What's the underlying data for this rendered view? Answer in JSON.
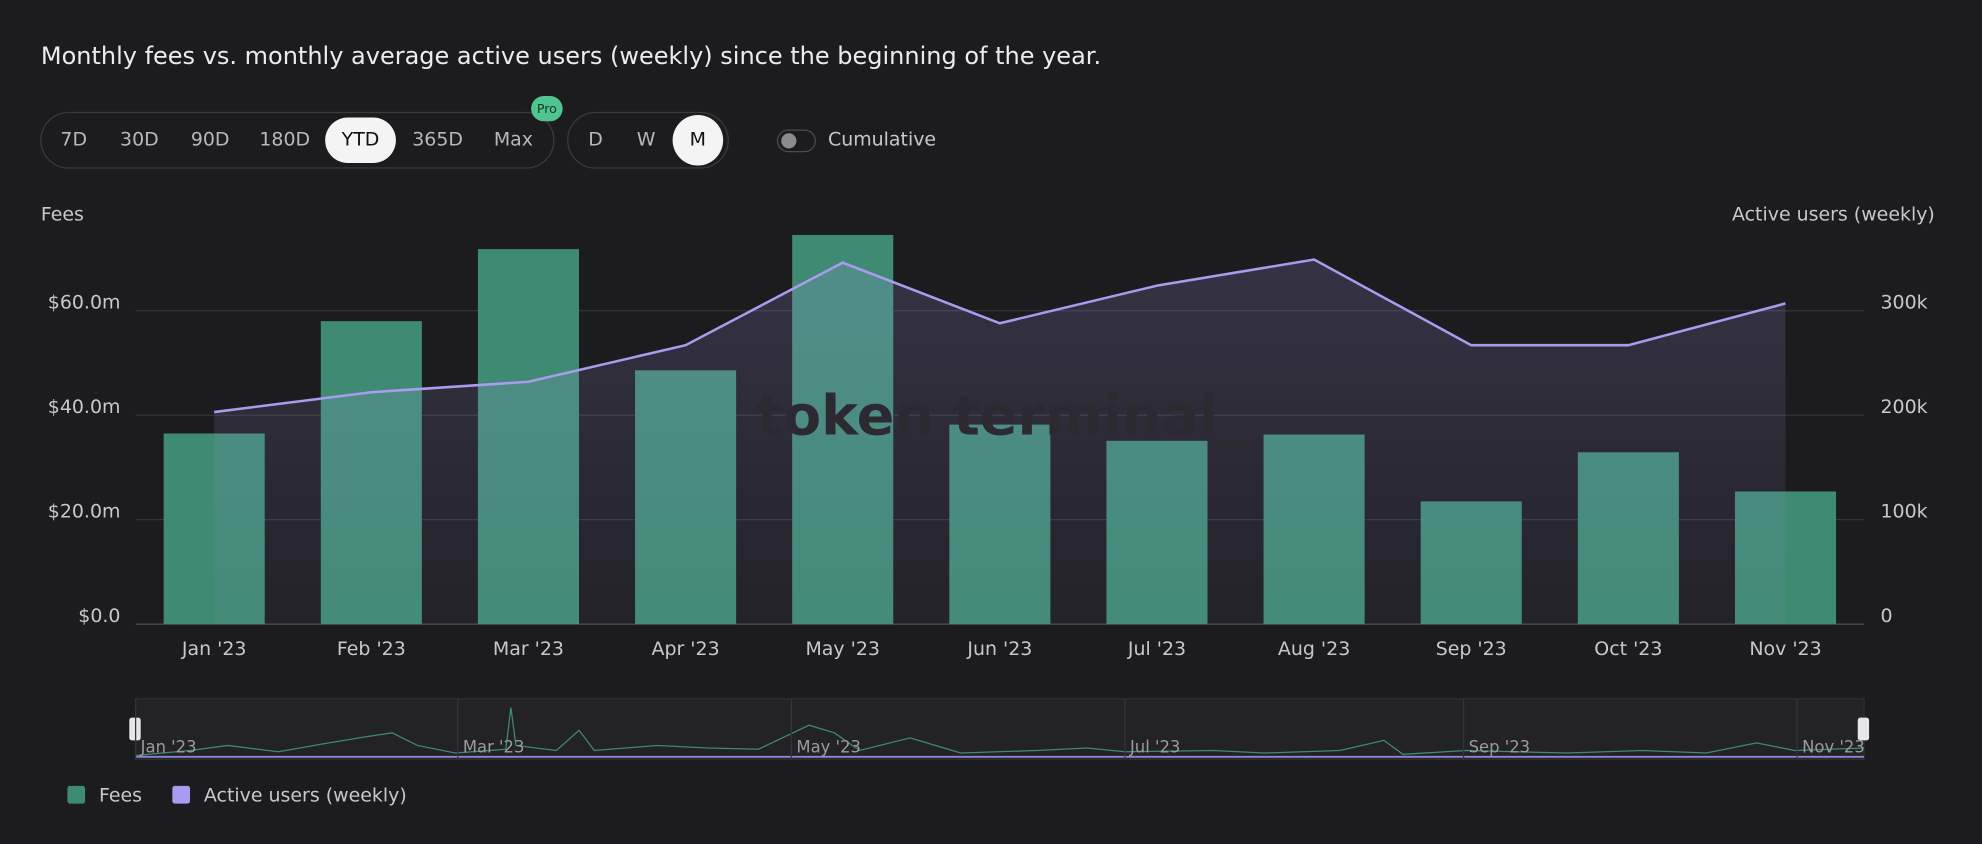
{
  "chart_data": {
    "type": "bar-line",
    "title": "Monthly fees vs. monthly average active users (weekly) since the beginning of the year.",
    "y_label": "Fees",
    "y2_label": "Active users (weekly)",
    "watermark": "token terminal_",
    "categories": [
      "Jan '23",
      "Feb '23",
      "Mar '23",
      "Apr '23",
      "May '23",
      "Jun '23",
      "Jul '23",
      "Aug '23",
      "Sep '23",
      "Oct '23",
      "Nov '23"
    ],
    "series": [
      {
        "name": "Fees",
        "color": "#3f8a72",
        "type": "bar",
        "values": [
          36500000,
          58000000,
          71800000,
          48600000,
          74500000,
          38200000,
          35100000,
          36300000,
          23500000,
          32900000,
          25400000
        ]
      },
      {
        "name": "Active users (weekly)",
        "color": "#a99cf0",
        "type": "line",
        "axis": "y2",
        "values": [
          203000,
          222000,
          232000,
          267000,
          346000,
          288000,
          324000,
          349000,
          267000,
          267000,
          307000
        ]
      }
    ],
    "ylim": [
      0,
      78000000
    ],
    "yticks": [
      {
        "value": 0,
        "label": "$0.0"
      },
      {
        "value": 20000000,
        "label": "$20.0m"
      },
      {
        "value": 40000000,
        "label": "$40.0m"
      },
      {
        "value": 60000000,
        "label": "$60.0m"
      }
    ],
    "y2lim": [
      0,
      390000
    ],
    "y2ticks": [
      0,
      {
        "value": 100000,
        "label": "100k"
      },
      {
        "value": 200000,
        "label": "200k"
      },
      {
        "value": 300000,
        "label": "300k"
      }
    ],
    "grid": true,
    "navigator_labels": [
      "Jan '23",
      "Mar '23",
      "May '23",
      "Jul '23",
      "Sep '23",
      "Nov '23"
    ]
  },
  "controls": {
    "range_buttons": [
      {
        "label": "7D",
        "selected": false
      },
      {
        "label": "30D",
        "selected": false
      },
      {
        "label": "90D",
        "selected": false
      },
      {
        "label": "180D",
        "selected": false
      },
      {
        "label": "YTD",
        "selected": true
      },
      {
        "label": "365D",
        "selected": false
      },
      {
        "label": "Max",
        "selected": false
      }
    ],
    "pro_badge": "Pro",
    "interval_buttons": [
      {
        "label": "D",
        "selected": false
      },
      {
        "label": "W",
        "selected": false
      },
      {
        "label": "M",
        "selected": true
      }
    ],
    "toggle_label": "Cumulative"
  }
}
